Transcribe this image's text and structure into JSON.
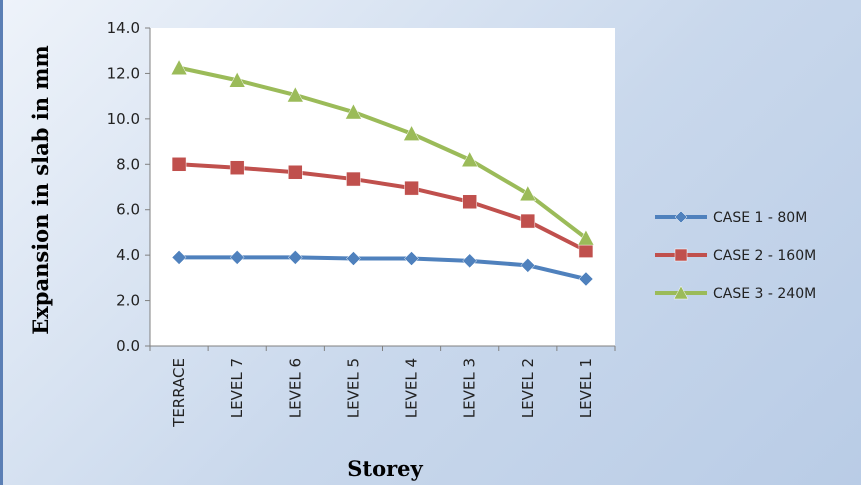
{
  "chart_data": {
    "type": "line",
    "categories": [
      "TERRACE",
      "LEVEL 7",
      "LEVEL 6",
      "LEVEL 5",
      "LEVEL 4",
      "LEVEL 3",
      "LEVEL 2",
      "LEVEL 1"
    ],
    "series": [
      {
        "name": "CASE 1 - 80M",
        "values": [
          3.9,
          3.9,
          3.9,
          3.85,
          3.85,
          3.75,
          3.55,
          2.95
        ],
        "color": "#4f81bd",
        "marker": "diamond"
      },
      {
        "name": "CASE 2 - 160M",
        "values": [
          8.0,
          7.85,
          7.65,
          7.35,
          6.95,
          6.35,
          5.5,
          4.2
        ],
        "color": "#c0504d",
        "marker": "square"
      },
      {
        "name": "CASE 3 - 240M",
        "values": [
          12.25,
          11.7,
          11.05,
          10.3,
          9.35,
          8.2,
          6.7,
          4.75
        ],
        "color": "#9bbb59",
        "marker": "triangle"
      }
    ],
    "title": "",
    "xlabel": "Storey",
    "ylabel": "Expansion in slab in mm",
    "ylim": [
      0,
      14
    ],
    "yticks": [
      "0.0",
      "2.0",
      "4.0",
      "6.0",
      "8.0",
      "10.0",
      "12.0",
      "14.0"
    ],
    "grid": false,
    "legend": "right"
  }
}
